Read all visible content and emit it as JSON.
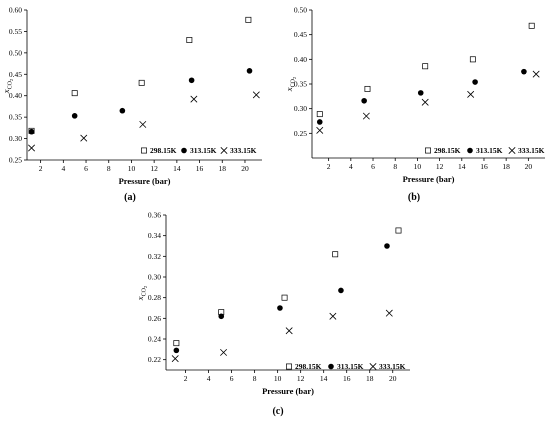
{
  "chart_data": [
    {
      "type": "scatter",
      "panel_label": "(a)",
      "xlabel": "Pressure (bar)",
      "ylabel": "x",
      "ylabel_sub": "CO",
      "ylabel_sub2": "2",
      "xlim": [
        0.8,
        21.5
      ],
      "ylim": [
        0.25,
        0.6
      ],
      "xticks": [
        2,
        4,
        6,
        8,
        10,
        12,
        14,
        16,
        18,
        20
      ],
      "yticks": [
        0.25,
        0.3,
        0.35,
        0.4,
        0.45,
        0.5,
        0.55,
        0.6
      ],
      "yticklabels": [
        "0.25",
        "0.30",
        "0.35",
        "0.40",
        "0.45",
        "0.50",
        "0.55",
        "0.60"
      ],
      "legend_position": "bottom-right",
      "series": [
        {
          "name": "298.15K",
          "marker": "square",
          "x": [
            1.2,
            5.0,
            10.9,
            15.1,
            20.3
          ],
          "y": [
            0.318,
            0.406,
            0.43,
            0.53,
            0.577
          ]
        },
        {
          "name": "313.15K",
          "marker": "circle",
          "x": [
            1.2,
            5.0,
            9.2,
            15.3,
            20.4
          ],
          "y": [
            0.316,
            0.353,
            0.365,
            0.436,
            0.458
          ]
        },
        {
          "name": "333.15K",
          "marker": "x",
          "x": [
            1.2,
            5.8,
            11.0,
            15.5,
            21.0
          ],
          "y": [
            0.278,
            0.301,
            0.333,
            0.392,
            0.402
          ]
        }
      ]
    },
    {
      "type": "scatter",
      "panel_label": "(b)",
      "xlabel": "Pressure (bar)",
      "ylabel": "x",
      "ylabel_sub": "CO",
      "ylabel_sub2": "2",
      "xlim": [
        0.5,
        21.5
      ],
      "ylim": [
        0.2,
        0.5
      ],
      "xticks": [
        2,
        4,
        6,
        8,
        10,
        12,
        14,
        16,
        18,
        20
      ],
      "yticks": [
        0.25,
        0.3,
        0.35,
        0.4,
        0.45,
        0.5
      ],
      "yticklabels": [
        "0.25",
        "0.30",
        "0.35",
        "0.40",
        "0.45",
        "0.50"
      ],
      "legend_position": "bottom-right",
      "series": [
        {
          "name": "298.15K",
          "marker": "square",
          "x": [
            1.2,
            5.5,
            10.7,
            15.0,
            20.3
          ],
          "y": [
            0.289,
            0.34,
            0.386,
            0.4,
            0.468
          ]
        },
        {
          "name": "313.15K",
          "marker": "circle",
          "x": [
            1.2,
            5.2,
            10.3,
            15.2,
            19.6
          ],
          "y": [
            0.273,
            0.316,
            0.332,
            0.354,
            0.375
          ]
        },
        {
          "name": "333.15K",
          "marker": "x",
          "x": [
            1.2,
            5.4,
            10.7,
            14.8,
            20.7
          ],
          "y": [
            0.256,
            0.285,
            0.313,
            0.329,
            0.37
          ]
        }
      ]
    },
    {
      "type": "scatter",
      "panel_label": "(c)",
      "xlabel": "Pressure (bar)",
      "ylabel": "x",
      "ylabel_sub": "CO",
      "ylabel_sub2": "2",
      "xlim": [
        0.3,
        21.5
      ],
      "ylim": [
        0.21,
        0.36
      ],
      "xticks": [
        2,
        4,
        6,
        8,
        10,
        12,
        14,
        16,
        18,
        20
      ],
      "yticks": [
        0.22,
        0.24,
        0.26,
        0.28,
        0.3,
        0.32,
        0.34,
        0.36
      ],
      "yticklabels": [
        "0.22",
        "0.24",
        "0.26",
        "0.28",
        "0.30",
        "0.32",
        "0.34",
        "0.36"
      ],
      "legend_position": "bottom-right",
      "series": [
        {
          "name": "298.15K",
          "marker": "square",
          "x": [
            1.2,
            5.1,
            10.6,
            15.0,
            20.5
          ],
          "y": [
            0.236,
            0.266,
            0.28,
            0.322,
            0.345
          ]
        },
        {
          "name": "313.15K",
          "marker": "circle",
          "x": [
            1.2,
            5.1,
            10.2,
            15.5,
            19.5
          ],
          "y": [
            0.229,
            0.262,
            0.27,
            0.287,
            0.33
          ]
        },
        {
          "name": "333.15K",
          "marker": "x",
          "x": [
            1.1,
            5.3,
            11.0,
            14.8,
            19.7
          ],
          "y": [
            0.221,
            0.227,
            0.248,
            0.262,
            0.265
          ]
        }
      ]
    }
  ]
}
